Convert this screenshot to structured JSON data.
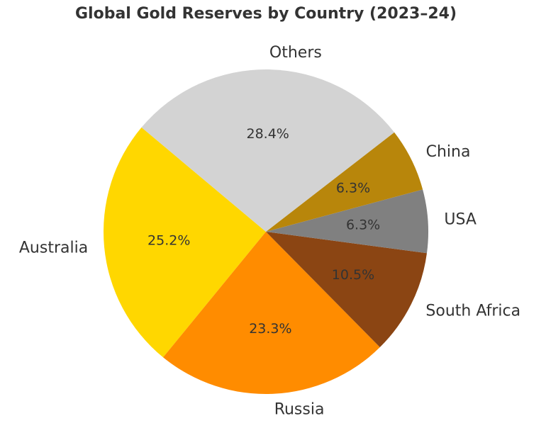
{
  "chart_data": {
    "type": "pie",
    "title": "Global Gold Reserves by Country (2023–24)",
    "categories": [
      "Australia",
      "Russia",
      "South Africa",
      "USA",
      "China",
      "Others"
    ],
    "values": [
      25.2,
      23.3,
      10.5,
      6.3,
      6.3,
      28.4
    ],
    "value_labels": [
      "25.2%",
      "23.3%",
      "10.5%",
      "6.3%",
      "6.3%",
      "28.4%"
    ],
    "colors": [
      "#FFD700",
      "#FF8C00",
      "#8B4513",
      "#808080",
      "#B8860B",
      "#D3D3D3"
    ],
    "start_angle": 140
  }
}
